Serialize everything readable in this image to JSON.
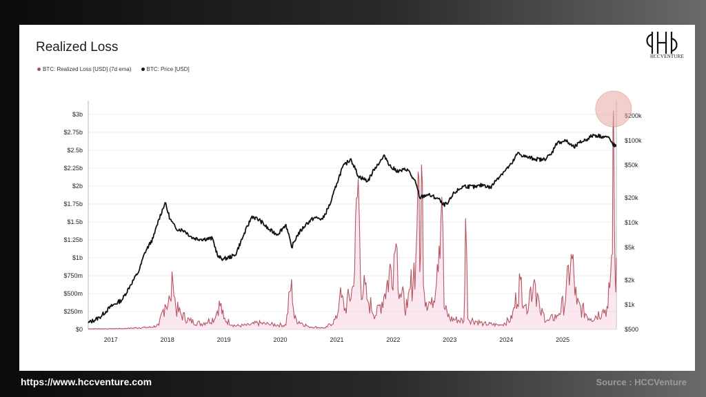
{
  "header": {
    "title": "Realized Loss"
  },
  "logo": {
    "text": "HCCVENTURE"
  },
  "footer": {
    "url": "https://www.hccventure.com",
    "source": "Source : HCCVenture"
  },
  "colors": {
    "loss": "#b45560",
    "loss_fill": "#f8d3e3",
    "price": "#111111",
    "highlight": "#e8a9a0"
  },
  "chart_data": {
    "type": "line",
    "title": "Realized Loss",
    "legend": [
      {
        "name": "BTC: Realized Loss [USD] (7d ema)",
        "color": "#a0555a"
      },
      {
        "name": "BTC: Price [USD]",
        "color": "#111111"
      }
    ],
    "x_ticks": [
      "2017",
      "2018",
      "2019",
      "2020",
      "2021",
      "2022",
      "2023",
      "2024",
      "2025"
    ],
    "y_left_ticks": [
      "$0",
      "$250m",
      "$500m",
      "$750m",
      "$1b",
      "$1.25b",
      "$1.5b",
      "$1.75b",
      "$2b",
      "$2.25b",
      "$2.5b",
      "$2.75b",
      "$3b"
    ],
    "y_left_range": [
      0,
      3000000000
    ],
    "y_right_ticks": [
      "$500",
      "$1k",
      "$2k",
      "$5k",
      "$10k",
      "$20k",
      "$50k",
      "$100k",
      "$200k"
    ],
    "y_right_range": [
      500,
      200000
    ],
    "y_right_scale": "log",
    "grid": true,
    "legend_position": "top-left",
    "x_range": [
      2016.6,
      2025.95
    ],
    "series": [
      {
        "name": "BTC: Price [USD]",
        "axis": "right",
        "points": [
          [
            2016.6,
            600
          ],
          [
            2016.8,
            700
          ],
          [
            2017.0,
            950
          ],
          [
            2017.2,
            1150
          ],
          [
            2017.35,
            1750
          ],
          [
            2017.5,
            2600
          ],
          [
            2017.6,
            4300
          ],
          [
            2017.75,
            6500
          ],
          [
            2017.85,
            11000
          ],
          [
            2017.96,
            17500
          ],
          [
            2018.05,
            11000
          ],
          [
            2018.15,
            8500
          ],
          [
            2018.3,
            8000
          ],
          [
            2018.45,
            6500
          ],
          [
            2018.6,
            6300
          ],
          [
            2018.8,
            6400
          ],
          [
            2018.9,
            3800
          ],
          [
            2019.0,
            3600
          ],
          [
            2019.2,
            4000
          ],
          [
            2019.35,
            7000
          ],
          [
            2019.5,
            12000
          ],
          [
            2019.65,
            10500
          ],
          [
            2019.8,
            8200
          ],
          [
            2019.95,
            7200
          ],
          [
            2020.1,
            9500
          ],
          [
            2020.2,
            5000
          ],
          [
            2020.3,
            7000
          ],
          [
            2020.45,
            9500
          ],
          [
            2020.6,
            11500
          ],
          [
            2020.75,
            11000
          ],
          [
            2020.9,
            18000
          ],
          [
            2021.0,
            30000
          ],
          [
            2021.1,
            47000
          ],
          [
            2021.25,
            60000
          ],
          [
            2021.38,
            37000
          ],
          [
            2021.55,
            32000
          ],
          [
            2021.68,
            47000
          ],
          [
            2021.85,
            65000
          ],
          [
            2021.96,
            47000
          ],
          [
            2022.1,
            42000
          ],
          [
            2022.25,
            45000
          ],
          [
            2022.4,
            30000
          ],
          [
            2022.47,
            20000
          ],
          [
            2022.6,
            22000
          ],
          [
            2022.8,
            19500
          ],
          [
            2022.88,
            16500
          ],
          [
            2022.96,
            16800
          ],
          [
            2023.08,
            23000
          ],
          [
            2023.25,
            28000
          ],
          [
            2023.45,
            27000
          ],
          [
            2023.6,
            29000
          ],
          [
            2023.72,
            26500
          ],
          [
            2023.85,
            35000
          ],
          [
            2023.96,
            42000
          ],
          [
            2024.1,
            52000
          ],
          [
            2024.2,
            70000
          ],
          [
            2024.35,
            63000
          ],
          [
            2024.5,
            60000
          ],
          [
            2024.65,
            58000
          ],
          [
            2024.8,
            68000
          ],
          [
            2024.88,
            92000
          ],
          [
            2024.96,
            96000
          ],
          [
            2025.05,
            100000
          ],
          [
            2025.2,
            82000
          ],
          [
            2025.3,
            94000
          ],
          [
            2025.45,
            106000
          ],
          [
            2025.55,
            117000
          ],
          [
            2025.7,
            112000
          ],
          [
            2025.8,
            110000
          ],
          [
            2025.88,
            92000
          ],
          [
            2025.92,
            87000
          ]
        ]
      },
      {
        "name": "BTC: Realized Loss [USD] (7d ema)",
        "axis": "left",
        "points": [
          [
            2016.6,
            10000000
          ],
          [
            2017.0,
            10000000
          ],
          [
            2017.3,
            15000000
          ],
          [
            2017.5,
            25000000
          ],
          [
            2017.7,
            30000000
          ],
          [
            2017.85,
            60000000
          ],
          [
            2017.96,
            350000000
          ],
          [
            2018.05,
            420000000
          ],
          [
            2018.1,
            650000000
          ],
          [
            2018.15,
            300000000
          ],
          [
            2018.25,
            200000000
          ],
          [
            2018.4,
            120000000
          ],
          [
            2018.6,
            80000000
          ],
          [
            2018.85,
            160000000
          ],
          [
            2018.92,
            400000000
          ],
          [
            2019.0,
            150000000
          ],
          [
            2019.2,
            50000000
          ],
          [
            2019.45,
            60000000
          ],
          [
            2019.6,
            90000000
          ],
          [
            2019.8,
            70000000
          ],
          [
            2020.1,
            60000000
          ],
          [
            2020.2,
            700000000
          ],
          [
            2020.25,
            150000000
          ],
          [
            2020.5,
            40000000
          ],
          [
            2020.8,
            20000000
          ],
          [
            2021.0,
            150000000
          ],
          [
            2021.05,
            450000000
          ],
          [
            2021.15,
            300000000
          ],
          [
            2021.3,
            600000000
          ],
          [
            2021.38,
            2100000000
          ],
          [
            2021.42,
            700000000
          ],
          [
            2021.55,
            400000000
          ],
          [
            2021.7,
            200000000
          ],
          [
            2021.85,
            500000000
          ],
          [
            2021.96,
            850000000
          ],
          [
            2022.05,
            1200000000
          ],
          [
            2022.12,
            500000000
          ],
          [
            2022.25,
            300000000
          ],
          [
            2022.4,
            1000000000
          ],
          [
            2022.44,
            2200000000
          ],
          [
            2022.47,
            800000000
          ],
          [
            2022.5,
            2300000000
          ],
          [
            2022.55,
            500000000
          ],
          [
            2022.7,
            300000000
          ],
          [
            2022.86,
            1850000000
          ],
          [
            2022.9,
            300000000
          ],
          [
            2023.0,
            150000000
          ],
          [
            2023.25,
            120000000
          ],
          [
            2023.28,
            1550000000
          ],
          [
            2023.32,
            150000000
          ],
          [
            2023.6,
            80000000
          ],
          [
            2023.9,
            60000000
          ],
          [
            2024.1,
            150000000
          ],
          [
            2024.25,
            700000000
          ],
          [
            2024.35,
            350000000
          ],
          [
            2024.5,
            700000000
          ],
          [
            2024.6,
            250000000
          ],
          [
            2024.75,
            120000000
          ],
          [
            2024.9,
            200000000
          ],
          [
            2025.05,
            400000000
          ],
          [
            2025.15,
            1050000000
          ],
          [
            2025.25,
            350000000
          ],
          [
            2025.5,
            150000000
          ],
          [
            2025.7,
            250000000
          ],
          [
            2025.8,
            300000000
          ],
          [
            2025.85,
            800000000
          ],
          [
            2025.88,
            1050000000
          ],
          [
            2025.9,
            3050000000
          ],
          [
            2025.93,
            700000000
          ],
          [
            2025.95,
            1000000000
          ]
        ]
      }
    ]
  }
}
